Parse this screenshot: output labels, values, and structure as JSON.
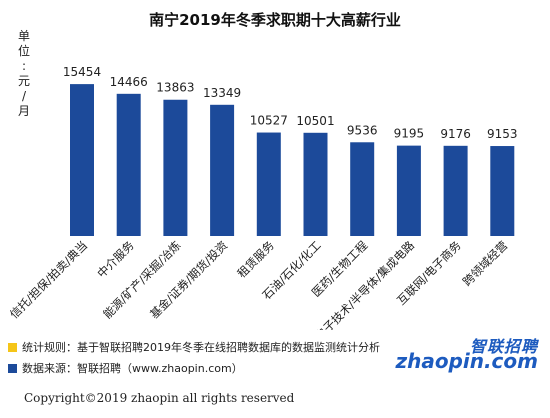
{
  "chart_data": {
    "type": "bar",
    "title": "南宁2019年冬季求职期十大高薪行业",
    "ylabel": "单位：元/月",
    "categories": [
      "信托/担保/拍卖/典当",
      "中介服务",
      "能源/矿产/采掘/冶炼",
      "基金/证券/期货/投资",
      "租赁服务",
      "石油/石化/化工",
      "医药/生物工程",
      "电子技术/半导体/集成电路",
      "互联网/电子商务",
      "跨领域经营"
    ],
    "values": [
      15454,
      14466,
      13863,
      13349,
      10527,
      10501,
      9536,
      9195,
      9176,
      9153
    ],
    "ylim": [
      0,
      17500
    ],
    "grid": false,
    "bar_color": "#1c4a9a"
  },
  "notes": [
    {
      "text": "统计规则：基于智联招聘2019年冬季在线招聘数据库的数据监测统计分析",
      "bullet_color": "#f5c518"
    },
    {
      "text": "数据来源：智联招聘（www.zhaopin.com）",
      "bullet_color": "#1c4a9a"
    }
  ],
  "logo": {
    "cn": "智联招聘",
    "en": "zhaopin.com"
  },
  "footer": "Copyright©2019 zhaopin all rights reserved"
}
